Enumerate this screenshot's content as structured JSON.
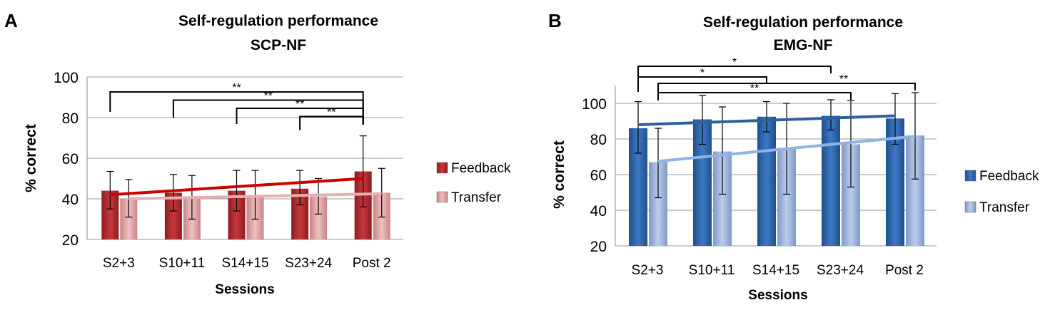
{
  "chart_data": [
    {
      "panel": "A",
      "type": "bar",
      "title": "Self-regulation performance",
      "subtitle": "SCP-NF",
      "xlabel": "Sessions",
      "ylabel": "% correct",
      "ylim": [
        20,
        100
      ],
      "yticks": [
        20,
        40,
        60,
        80,
        100
      ],
      "grid": true,
      "legend_position": "right",
      "categories": [
        "S2+3",
        "S10+11",
        "S14+15",
        "S23+24",
        "Post 2"
      ],
      "series": [
        {
          "name": "Feedback",
          "color": "#b3262b",
          "values": [
            44,
            43,
            44,
            45,
            53.5
          ],
          "err_low": [
            35,
            34,
            34,
            37,
            36
          ],
          "err_high": [
            53.5,
            52,
            54,
            54,
            71
          ],
          "trend": [
            42,
            50
          ],
          "trend_color": "#cc0000"
        },
        {
          "name": "Transfer",
          "color": "#e0a0a0",
          "values": [
            40,
            40,
            41,
            41,
            43
          ],
          "err_low": [
            31,
            30,
            30,
            32.5,
            31
          ],
          "err_high": [
            49.5,
            51.5,
            54,
            50,
            55
          ],
          "trend": [
            40,
            42.5
          ],
          "trend_color": "#e6b0b0"
        }
      ],
      "significance": [
        {
          "from": 0,
          "to": 4,
          "series": 0,
          "label": "**"
        },
        {
          "from": 1,
          "to": 4,
          "series": 0,
          "label": "**"
        },
        {
          "from": 2,
          "to": 4,
          "series": 0,
          "label": "**"
        },
        {
          "from": 3,
          "to": 4,
          "series": 0,
          "label": "**"
        }
      ]
    },
    {
      "panel": "B",
      "type": "bar",
      "title": "Self-regulation performance",
      "subtitle": "EMG-NF",
      "xlabel": "Sessions",
      "ylabel": "% correct",
      "ylim": [
        20,
        110
      ],
      "yticks": [
        20,
        40,
        60,
        80,
        100
      ],
      "grid": true,
      "legend_position": "right",
      "categories": [
        "S2+3",
        "S10+11",
        "S14+15",
        "S23+24",
        "Post 2"
      ],
      "series": [
        {
          "name": "Feedback",
          "color": "#2f65ad",
          "values": [
            86,
            91,
            92.5,
            93,
            91.5
          ],
          "err_low": [
            72,
            77,
            84,
            85,
            77
          ],
          "err_high": [
            101,
            104.5,
            101,
            102,
            105.5
          ],
          "trend": [
            88,
            93
          ],
          "trend_color": "#2e5f9e"
        },
        {
          "name": "Transfer",
          "color": "#9fb6dc",
          "values": [
            67,
            73,
            75,
            77,
            82
          ],
          "err_low": [
            47,
            49,
            49,
            53,
            57.5
          ],
          "err_high": [
            86,
            98,
            100,
            101.5,
            106
          ],
          "trend": [
            67.5,
            81.5
          ],
          "trend_color": "#8fb4e3"
        }
      ],
      "significance": [
        {
          "from": 0,
          "to": 3,
          "series": 0,
          "label": "*"
        },
        {
          "from": 0,
          "to": 2,
          "series": 0,
          "label": "*"
        },
        {
          "from": 0,
          "to": 4,
          "series": 1,
          "label": "**"
        },
        {
          "from": 0,
          "to": 3,
          "series": 1,
          "label": "**"
        }
      ]
    }
  ]
}
